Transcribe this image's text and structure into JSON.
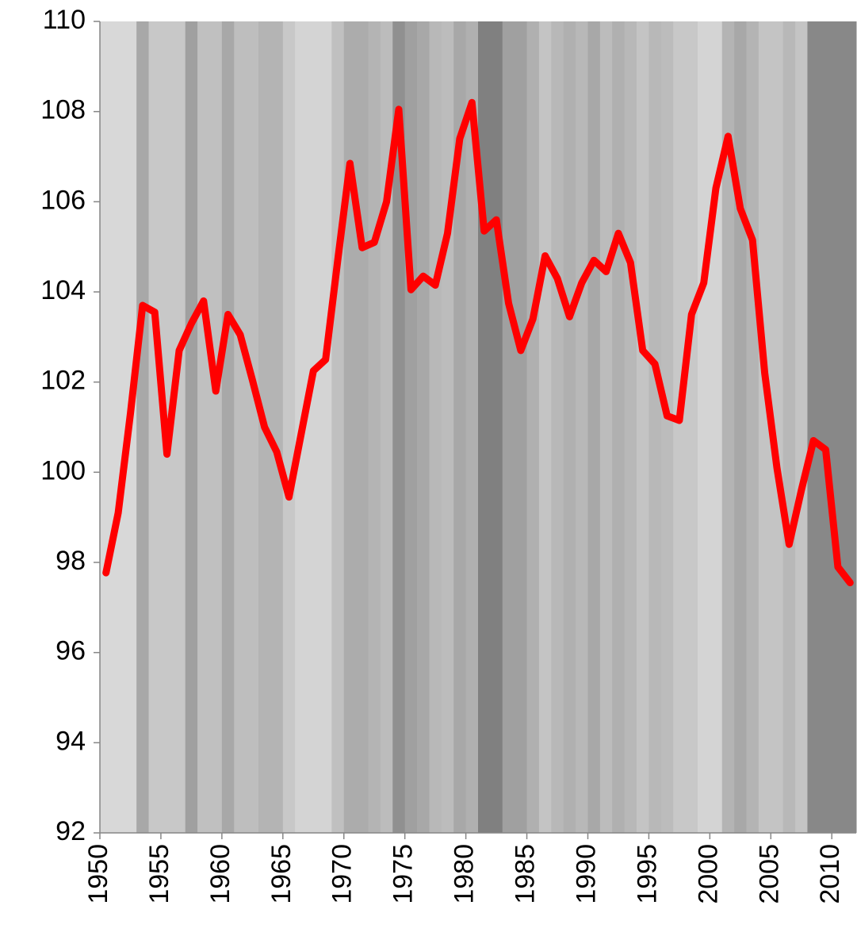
{
  "chart_data": {
    "type": "line",
    "categories": [
      "1950",
      null,
      null,
      null,
      null,
      "1955",
      null,
      null,
      null,
      null,
      "1960",
      null,
      null,
      null,
      null,
      "1965",
      null,
      null,
      null,
      null,
      "1970",
      null,
      null,
      null,
      null,
      "1975",
      null,
      null,
      null,
      null,
      "1980",
      null,
      null,
      null,
      null,
      "1985",
      null,
      null,
      null,
      null,
      "1990",
      null,
      null,
      null,
      null,
      "1995",
      null,
      null,
      null,
      null,
      "2000",
      null,
      null,
      null,
      null,
      "2005",
      null,
      null,
      null,
      null,
      "2010",
      null
    ],
    "series": [
      {
        "color": "#ff0000",
        "values": [
          97.77,
          99.1,
          101.3,
          103.7,
          103.55,
          100.4,
          102.7,
          103.3,
          103.8,
          101.8,
          103.5,
          103.05,
          102.05,
          101.0,
          100.45,
          99.45,
          100.85,
          102.25,
          102.5,
          104.7,
          106.85,
          104.98,
          105.1,
          106.0,
          108.05,
          104.05,
          104.35,
          104.15,
          105.3,
          107.4,
          108.2,
          105.35,
          105.6,
          103.75,
          102.7,
          103.4,
          104.8,
          104.3,
          103.45,
          104.2,
          104.7,
          104.45,
          105.3,
          104.65,
          102.7,
          102.4,
          101.25,
          101.15,
          103.5,
          104.2,
          106.3,
          107.45,
          105.85,
          105.15,
          102.2,
          100.1,
          98.4,
          99.6,
          100.7,
          100.5,
          97.9,
          97.55
        ]
      }
    ],
    "background_colors": [
      "#d8d8d8",
      "#d8d8d8",
      "#d8d8d8",
      "#a8a8a8",
      "#c8c8c8",
      "#c8c8c8",
      "#c8c8c8",
      "#a0a0a0",
      "#c0c0c0",
      "#c0c0c0",
      "#a8a8a8",
      "#bebebe",
      "#bebebe",
      "#b4b4b4",
      "#b4b4b4",
      "#c8c8c8",
      "#d4d4d4",
      "#d4d4d4",
      "#d4d4d4",
      "#c0c0c0",
      "#acacac",
      "#acacac",
      "#b4b4b4",
      "#bcbcbc",
      "#909090",
      "#a0a0a0",
      "#a8a8a8",
      "#b8b8b8",
      "#bcbcbc",
      "#a8a8a8",
      "#b0b0b0",
      "#808080",
      "#808080",
      "#a0a0a0",
      "#a0a0a0",
      "#b0b0b0",
      "#c4c4c4",
      "#b8b8b8",
      "#b0b0b0",
      "#b8b8b8",
      "#a8a8a8",
      "#bcbcbc",
      "#b0b0b0",
      "#b8b8b8",
      "#c4c4c4",
      "#b8b8b8",
      "#bcbcbc",
      "#c8c8c8",
      "#c8c8c8",
      "#d4d4d4",
      "#d4d4d4",
      "#b4b4b4",
      "#a8a8a8",
      "#b4b4b4",
      "#c4c4c4",
      "#c4c4c4",
      "#b8b8b8",
      "#c4c4c4",
      "#888888",
      "#888888",
      "#888888",
      "#888888"
    ],
    "ylim": [
      92,
      110
    ],
    "yticks": [
      92,
      94,
      96,
      98,
      100,
      102,
      104,
      106,
      108,
      110
    ]
  }
}
